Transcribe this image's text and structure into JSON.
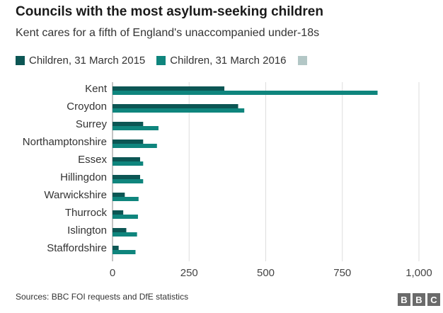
{
  "colors": {
    "series_2015": "#0c5654",
    "series_2016": "#0f857d",
    "series_extra": "#b3c7c6",
    "grid": "#dddddd",
    "axis": "#888888"
  },
  "chart_data": {
    "type": "bar",
    "orientation": "horizontal",
    "title": "Councils with the most asylum-seeking children",
    "subtitle": "Kent cares for a fifth of England's unaccompanied under-18s",
    "categories": [
      "Kent",
      "Croydon",
      "Surrey",
      "Northamptonshire",
      "Essex",
      "Hillingdon",
      "Warwickshire",
      "Thurrock",
      "Islington",
      "Staffordshire"
    ],
    "series": [
      {
        "name": "Children, 31 March 2015",
        "values": [
          365,
          410,
          100,
          100,
          90,
          90,
          40,
          35,
          45,
          20
        ]
      },
      {
        "name": "Children, 31 March 2016",
        "values": [
          865,
          430,
          150,
          145,
          100,
          100,
          85,
          83,
          80,
          75
        ]
      }
    ],
    "legend_extra_swatch": true,
    "xlim": [
      0,
      1000
    ],
    "xticks": [
      0,
      250,
      500,
      750,
      1000
    ],
    "xtick_labels": [
      "0",
      "250",
      "500",
      "750",
      "1,000"
    ],
    "grid": true,
    "legend_position": "top-left"
  },
  "footer": {
    "source": "Sources: BBC FOI requests and DfE statistics",
    "logo_letters": [
      "B",
      "B",
      "C"
    ]
  }
}
